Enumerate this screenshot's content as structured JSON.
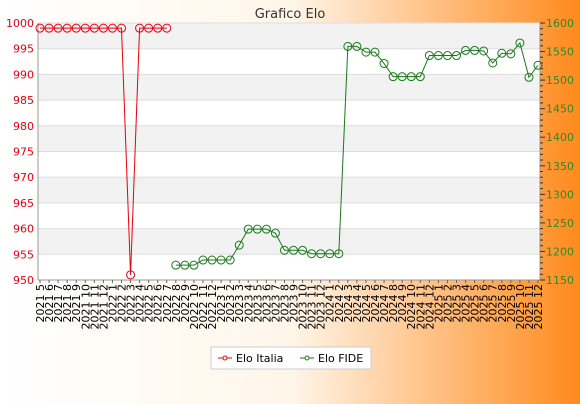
{
  "chart_data": {
    "type": "line",
    "title": "Grafico Elo",
    "x_labels": [
      "2021 5",
      "2021 6",
      "2021 7",
      "2021 8",
      "2021 9",
      "2021 10",
      "2021 11",
      "2021 12",
      "2022 1",
      "2022 2",
      "2022 3",
      "2022 4",
      "2022 5",
      "2022 6",
      "2022 7",
      "2022 8",
      "2022 9",
      "2022 10",
      "2022 11",
      "2022 12",
      "2023 1",
      "2023 2",
      "2023 3",
      "2023 4",
      "2023 5",
      "2023 6",
      "2023 7",
      "2023 8",
      "2023 9",
      "2023 10",
      "2023 11",
      "2023 12",
      "2024 1",
      "2024 2",
      "2024 3",
      "2024 4",
      "2024 5",
      "2024 6",
      "2024 7",
      "2024 8",
      "2024 9",
      "2024 10",
      "2024 11",
      "2024 12",
      "2025 1",
      "2025 2",
      "2025 3",
      "2025 4",
      "2025 5",
      "2025 6",
      "2025 7",
      "2025 8",
      "2025 9",
      "2025 10",
      "2025 11",
      "2025 12"
    ],
    "left_axis": {
      "min": 950,
      "max": 1000,
      "ticks": [
        950,
        955,
        960,
        965,
        970,
        975,
        980,
        985,
        990,
        995,
        1000
      ],
      "color": "#e8000b"
    },
    "right_axis": {
      "min": 1150,
      "max": 1600,
      "ticks": [
        1150,
        1200,
        1250,
        1300,
        1350,
        1400,
        1450,
        1500,
        1550,
        1600
      ],
      "color": "#2a8a2a"
    },
    "series": [
      {
        "name": "Elo Italia",
        "axis": "left",
        "color": "#e8000b",
        "values": [
          999,
          999,
          999,
          999,
          999,
          999,
          999,
          999,
          999,
          999,
          951,
          999,
          999,
          999,
          999,
          null,
          null,
          null,
          null,
          null,
          null,
          null,
          null,
          null,
          null,
          null,
          null,
          null,
          null,
          null,
          null,
          null,
          null,
          null,
          null,
          null,
          null,
          null,
          null,
          null,
          null,
          null,
          null,
          null,
          null,
          null,
          null,
          null,
          null,
          null,
          null,
          null,
          null,
          null,
          null,
          null
        ]
      },
      {
        "name": "Elo FIDE",
        "axis": "right",
        "color": "#1a7a1a",
        "values": [
          null,
          null,
          null,
          null,
          null,
          null,
          null,
          null,
          null,
          null,
          null,
          null,
          null,
          null,
          null,
          1176,
          1176,
          1176,
          1185,
          1185,
          1185,
          1185,
          1211,
          1239,
          1239,
          1239,
          1232,
          1202,
          1202,
          1202,
          1196,
          1196,
          1196,
          1196,
          1559,
          1559,
          1549,
          1549,
          1529,
          1506,
          1506,
          1506,
          1506,
          1543,
          1543,
          1543,
          1543,
          1552,
          1552,
          1551,
          1530,
          1547,
          1546,
          1565,
          1505,
          1526
        ]
      }
    ],
    "grid": "horizontal",
    "legend": "bottom-center"
  }
}
